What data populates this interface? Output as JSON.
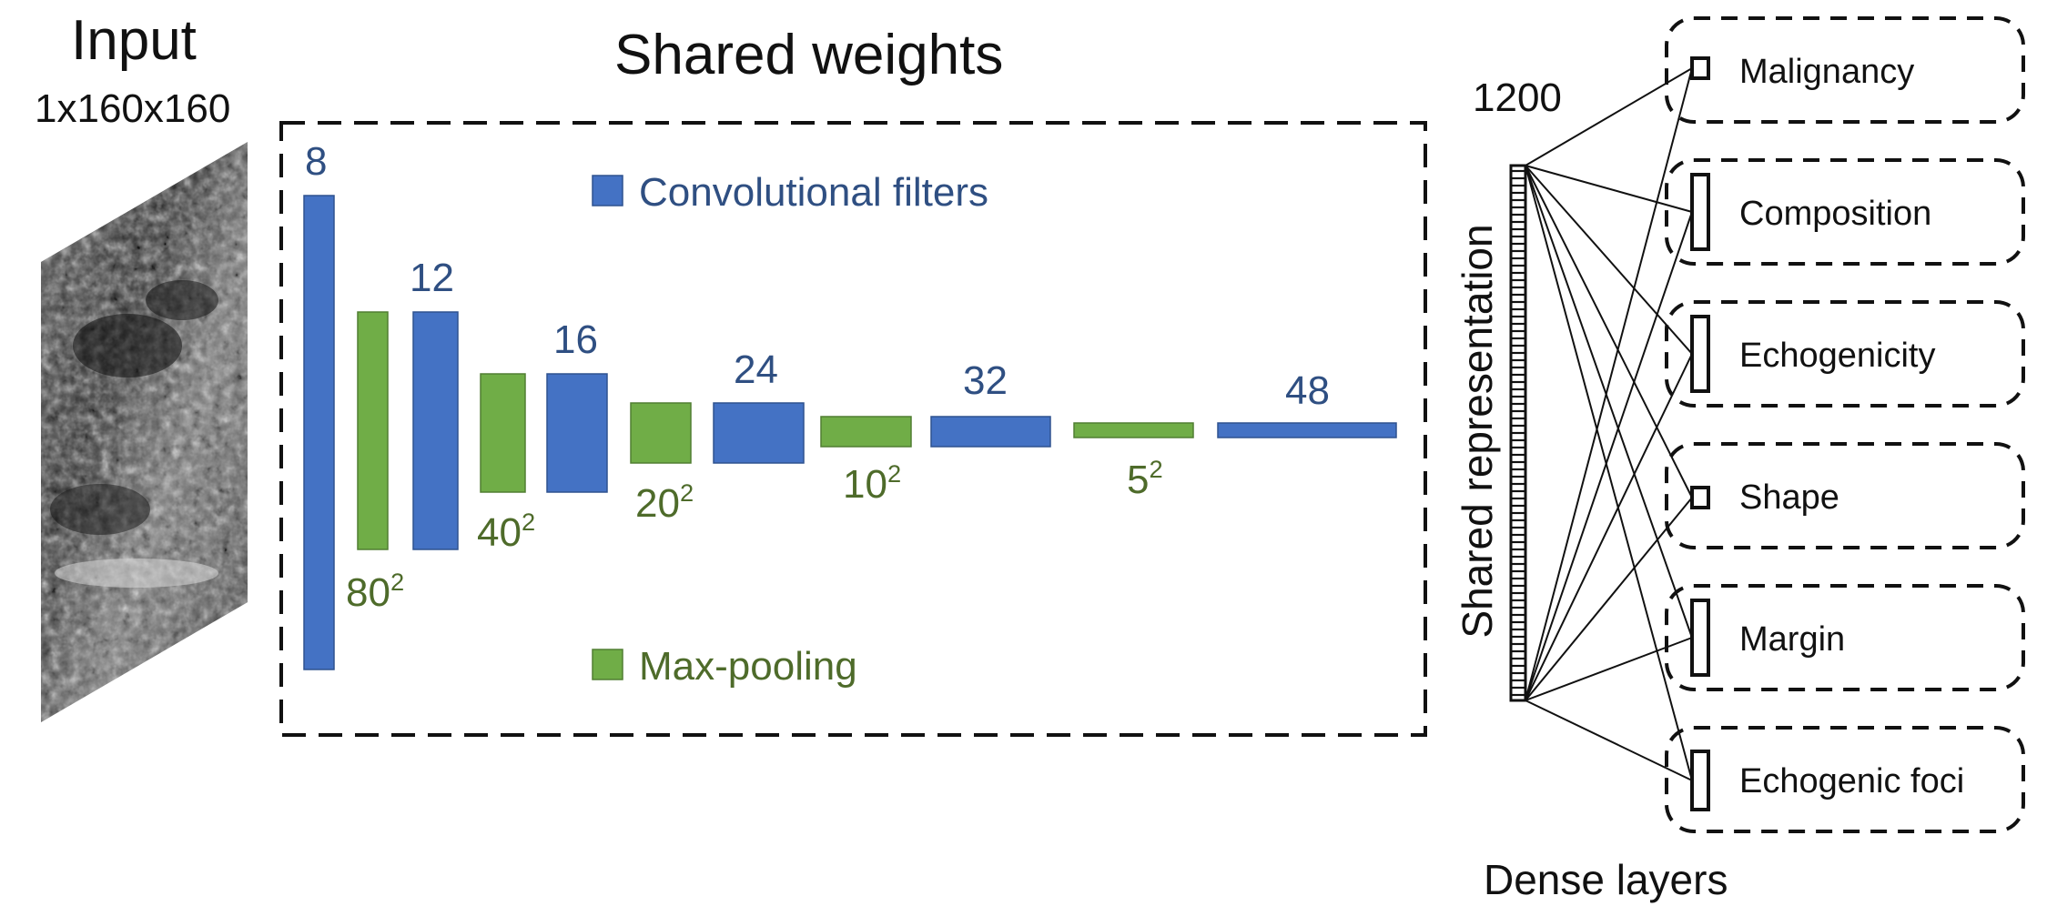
{
  "input": {
    "title": "Input",
    "shape": "1x160x160"
  },
  "shared": {
    "title": "Shared weights",
    "legend_conv": "Convolutional filters",
    "legend_pool": "Max-pooling"
  },
  "conv_labels": [
    "8",
    "12",
    "16",
    "24",
    "32",
    "48"
  ],
  "pool_labels": [
    {
      "base": "80",
      "exp": "2"
    },
    {
      "base": "40",
      "exp": "2"
    },
    {
      "base": "20",
      "exp": "2"
    },
    {
      "base": "10",
      "exp": "2"
    },
    {
      "base": "5",
      "exp": "2"
    }
  ],
  "representation": {
    "size": "1200",
    "label": "Shared representation"
  },
  "dense": {
    "caption": "Dense layers",
    "outputs": [
      "Malignancy",
      "Composition",
      "Echogenicity",
      "Shape",
      "Margin",
      "Echogenic foci"
    ]
  },
  "colors": {
    "conv": "#4472c4",
    "pool": "#70ad47",
    "conv_text": "#2f4f82",
    "pool_text": "#4e6b2a"
  }
}
